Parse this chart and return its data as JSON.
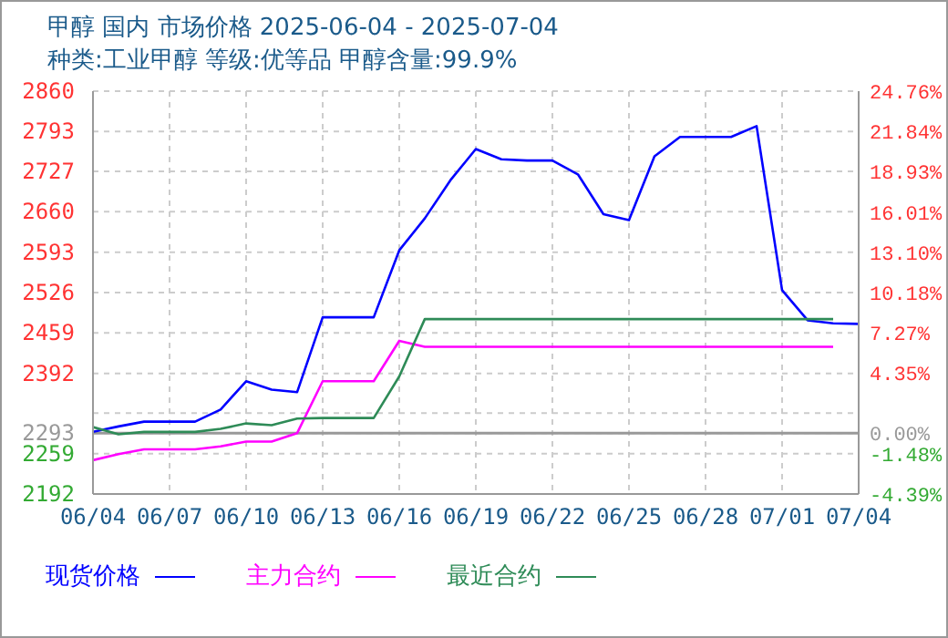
{
  "chart_data": {
    "type": "line",
    "title": "甲醇 国内 市场价格 2025-06-04 - 2025-07-04",
    "subtitle": "种类:工业甲醇 等级:优等品 甲醇含量:99.9%",
    "categories": [
      "06/04",
      null,
      null,
      "06/07",
      null,
      null,
      "06/10",
      null,
      null,
      "06/13",
      null,
      null,
      "06/16",
      null,
      null,
      "06/19",
      null,
      null,
      "06/22",
      null,
      null,
      "06/25",
      null,
      null,
      "06/28",
      null,
      null,
      "07/01",
      null,
      null,
      "07/04"
    ],
    "series": [
      {
        "name": "现货价格",
        "color": "#0000ff",
        "values": [
          2295,
          2304,
          2312,
          2312,
          2312,
          2332,
          2379,
          2365,
          2361,
          2485,
          2485,
          2485,
          2596,
          2649,
          2712,
          2764,
          2747,
          2745,
          2745,
          2722,
          2656,
          2646,
          2752,
          2784,
          2784,
          2784,
          2802,
          2530,
          2480,
          2475,
          2474
        ]
      },
      {
        "name": "主力合约",
        "color": "#ff00ff",
        "values": [
          2248,
          2258,
          2266,
          2266,
          2266,
          2271,
          2279,
          2279,
          2293,
          2379,
          2379,
          2379,
          2446,
          2436,
          2436,
          2436,
          2436,
          2436,
          2436,
          2436,
          2436,
          2436,
          2436,
          2436,
          2436,
          2436,
          2436,
          2436,
          2436,
          2436,
          null
        ]
      },
      {
        "name": "最近合约",
        "color": "#2e8b57",
        "values": [
          2303,
          2291,
          2295,
          2295,
          2295,
          2300,
          2309,
          2306,
          2317,
          2318,
          2318,
          2318,
          2387,
          2482,
          2482,
          2482,
          2482,
          2482,
          2482,
          2482,
          2482,
          2482,
          2482,
          2482,
          2482,
          2482,
          2482,
          2482,
          2482,
          2482,
          null
        ]
      }
    ],
    "ylim": [
      2192,
      2860
    ],
    "yticks": [
      2860,
      2793,
      2727,
      2660,
      2593,
      2526,
      2459,
      2392,
      {
        "value": 2326,
        "label": null
      },
      2293,
      2259,
      2192
    ],
    "y2lim": [
      -4.39,
      24.76
    ],
    "y2ticks": [
      {
        "value": 24.76,
        "label": "24.76%"
      },
      {
        "value": 21.84,
        "label": "21.84%"
      },
      {
        "value": 18.93,
        "label": "18.93%"
      },
      {
        "value": 16.01,
        "label": "16.01%"
      },
      {
        "value": 13.1,
        "label": "13.10%"
      },
      {
        "value": 10.18,
        "label": "10.18%"
      },
      {
        "value": 7.27,
        "label": "7.27%"
      },
      {
        "value": 4.35,
        "label": "4.35%"
      },
      {
        "value": 0,
        "label": "0.00%"
      },
      {
        "value": -1.48,
        "label": "-1.48%"
      },
      {
        "value": -4.39,
        "label": "-4.39%"
      }
    ],
    "ref_lines": [
      {
        "axis": "y",
        "value": 2293,
        "label": null,
        "color": "#999999"
      }
    ],
    "grid": true,
    "legend": "bottom",
    "marker": "none",
    "line_style": "solid"
  }
}
